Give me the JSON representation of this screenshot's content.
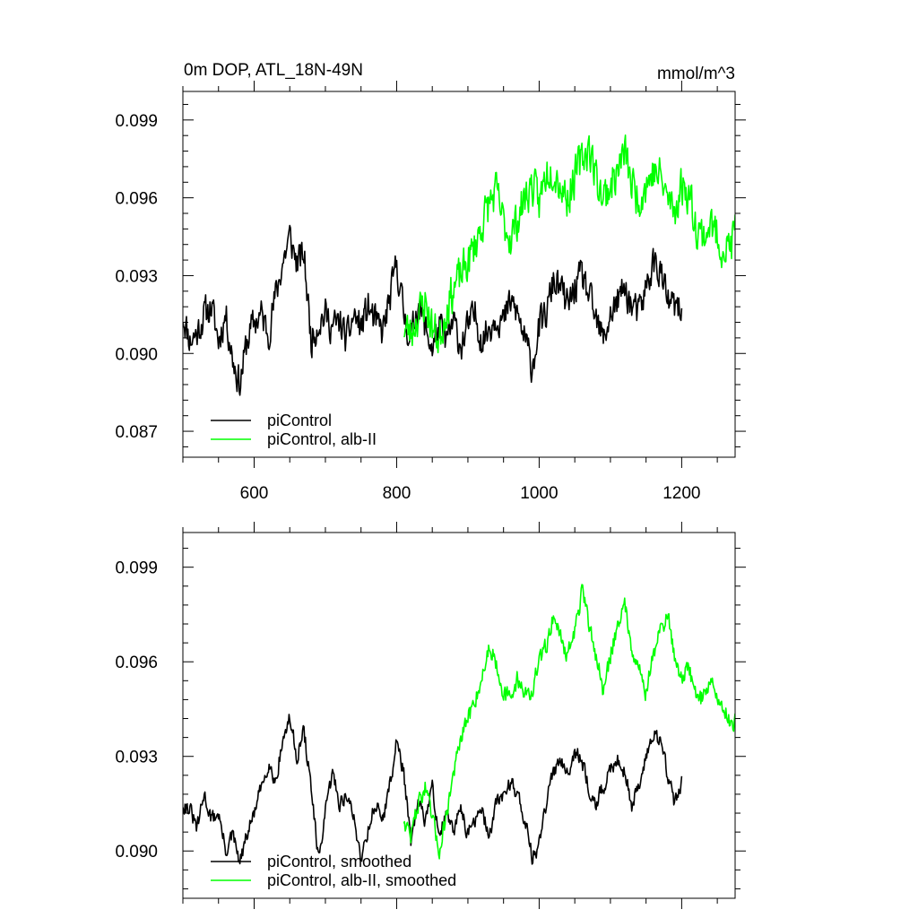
{
  "chart_data": [
    {
      "type": "line",
      "title": "0m DOP, ATL_18N-49N",
      "units": "mmol/m^3",
      "xlim": [
        500,
        1275
      ],
      "ylim": [
        0.086,
        0.1001
      ],
      "x_ticks": [
        600,
        800,
        1000,
        1200
      ],
      "x_tick_labels": [
        "600",
        "800",
        "1000",
        "1200"
      ],
      "y_ticks": [
        0.087,
        0.09,
        0.093,
        0.096,
        0.099
      ],
      "y_tick_labels": [
        "0.087",
        "0.090",
        "0.093",
        "0.096",
        "0.099"
      ],
      "legend_position": "bottom-left",
      "series": [
        {
          "name": "piControl",
          "color": "#000000",
          "x_start": 500,
          "x_end": 1200,
          "anchors": [
            [
              500,
              0.0915
            ],
            [
              510,
              0.0905
            ],
            [
              520,
              0.0908
            ],
            [
              530,
              0.0915
            ],
            [
              540,
              0.0918
            ],
            [
              550,
              0.0905
            ],
            [
              560,
              0.0915
            ],
            [
              570,
              0.0898
            ],
            [
              580,
              0.0888
            ],
            [
              590,
              0.0905
            ],
            [
              600,
              0.0912
            ],
            [
              610,
              0.0915
            ],
            [
              620,
              0.0908
            ],
            [
              630,
              0.0922
            ],
            [
              640,
              0.0935
            ],
            [
              650,
              0.0945
            ],
            [
              660,
              0.0935
            ],
            [
              670,
              0.0938
            ],
            [
              680,
              0.0905
            ],
            [
              690,
              0.0912
            ],
            [
              700,
              0.0915
            ],
            [
              710,
              0.091
            ],
            [
              720,
              0.0912
            ],
            [
              730,
              0.0905
            ],
            [
              740,
              0.0915
            ],
            [
              750,
              0.091
            ],
            [
              760,
              0.0918
            ],
            [
              770,
              0.0912
            ],
            [
              780,
              0.0908
            ],
            [
              790,
              0.092
            ],
            [
              800,
              0.0935
            ],
            [
              810,
              0.0915
            ],
            [
              820,
              0.0905
            ],
            [
              830,
              0.092
            ],
            [
              840,
              0.091
            ],
            [
              850,
              0.0902
            ],
            [
              860,
              0.091
            ],
            [
              870,
              0.0905
            ],
            [
              880,
              0.0912
            ],
            [
              890,
              0.0903
            ],
            [
              900,
              0.091
            ],
            [
              910,
              0.0915
            ],
            [
              920,
              0.0905
            ],
            [
              930,
              0.091
            ],
            [
              940,
              0.0915
            ],
            [
              950,
              0.0912
            ],
            [
              960,
              0.092
            ],
            [
              970,
              0.0915
            ],
            [
              980,
              0.0905
            ],
            [
              990,
              0.0895
            ],
            [
              1000,
              0.091
            ],
            [
              1010,
              0.0915
            ],
            [
              1020,
              0.0928
            ],
            [
              1030,
              0.0925
            ],
            [
              1040,
              0.0918
            ],
            [
              1050,
              0.0925
            ],
            [
              1060,
              0.093
            ],
            [
              1070,
              0.0922
            ],
            [
              1080,
              0.0912
            ],
            [
              1090,
              0.0905
            ],
            [
              1100,
              0.0915
            ],
            [
              1110,
              0.092
            ],
            [
              1120,
              0.0925
            ],
            [
              1130,
              0.0918
            ],
            [
              1140,
              0.0915
            ],
            [
              1150,
              0.0925
            ],
            [
              1160,
              0.0935
            ],
            [
              1170,
              0.0932
            ],
            [
              1180,
              0.092
            ],
            [
              1190,
              0.0918
            ],
            [
              1200,
              0.0915
            ]
          ],
          "amplitude": 0.0009,
          "seed": 11
        },
        {
          "name": "piControl, alb-II",
          "color": "#00ff00",
          "x_start": 810,
          "x_end": 1275,
          "anchors": [
            [
              810,
              0.091
            ],
            [
              820,
              0.0908
            ],
            [
              830,
              0.0915
            ],
            [
              840,
              0.092
            ],
            [
              850,
              0.091
            ],
            [
              860,
              0.0905
            ],
            [
              870,
              0.0918
            ],
            [
              880,
              0.0925
            ],
            [
              890,
              0.093
            ],
            [
              900,
              0.0935
            ],
            [
              910,
              0.0942
            ],
            [
              920,
              0.095
            ],
            [
              930,
              0.0958
            ],
            [
              940,
              0.0962
            ],
            [
              950,
              0.095
            ],
            [
              960,
              0.0945
            ],
            [
              970,
              0.0952
            ],
            [
              980,
              0.096
            ],
            [
              990,
              0.0965
            ],
            [
              1000,
              0.0958
            ],
            [
              1010,
              0.097
            ],
            [
              1020,
              0.0972
            ],
            [
              1030,
              0.0965
            ],
            [
              1040,
              0.096
            ],
            [
              1050,
              0.0968
            ],
            [
              1060,
              0.0975
            ],
            [
              1070,
              0.098
            ],
            [
              1080,
              0.0968
            ],
            [
              1090,
              0.096
            ],
            [
              1100,
              0.0965
            ],
            [
              1110,
              0.097
            ],
            [
              1120,
              0.0978
            ],
            [
              1130,
              0.0965
            ],
            [
              1140,
              0.096
            ],
            [
              1150,
              0.0965
            ],
            [
              1160,
              0.097
            ],
            [
              1170,
              0.0968
            ],
            [
              1180,
              0.096
            ],
            [
              1190,
              0.0955
            ],
            [
              1200,
              0.0965
            ],
            [
              1210,
              0.0962
            ],
            [
              1220,
              0.095
            ],
            [
              1230,
              0.0945
            ],
            [
              1240,
              0.095
            ],
            [
              1250,
              0.0945
            ],
            [
              1260,
              0.094
            ],
            [
              1270,
              0.0942
            ],
            [
              1275,
              0.0948
            ]
          ],
          "amplitude": 0.0011,
          "seed": 23
        }
      ]
    },
    {
      "type": "line",
      "title": "",
      "xlim": [
        500,
        1275
      ],
      "ylim": [
        0.0885,
        0.1001
      ],
      "x_ticks": [
        600,
        800,
        1000,
        1200
      ],
      "x_tick_labels": [],
      "y_ticks": [
        0.09,
        0.093,
        0.096,
        0.099
      ],
      "y_tick_labels": [
        "0.090",
        "0.093",
        "0.096",
        "0.099"
      ],
      "legend_position": "bottom-left",
      "series": [
        {
          "name": "piControl, smoothed",
          "color": "#000000",
          "x_start": 500,
          "x_end": 1200,
          "anchors": [
            [
              500,
              0.0915
            ],
            [
              510,
              0.0913
            ],
            [
              520,
              0.0907
            ],
            [
              530,
              0.0918
            ],
            [
              540,
              0.091
            ],
            [
              550,
              0.0912
            ],
            [
              560,
              0.09
            ],
            [
              570,
              0.0905
            ],
            [
              580,
              0.0896
            ],
            [
              590,
              0.0905
            ],
            [
              600,
              0.0912
            ],
            [
              610,
              0.092
            ],
            [
              620,
              0.0928
            ],
            [
              630,
              0.0922
            ],
            [
              640,
              0.0935
            ],
            [
              650,
              0.0942
            ],
            [
              660,
              0.093
            ],
            [
              670,
              0.0938
            ],
            [
              680,
              0.092
            ],
            [
              690,
              0.0897
            ],
            [
              700,
              0.0912
            ],
            [
              710,
              0.0925
            ],
            [
              720,
              0.0915
            ],
            [
              730,
              0.0918
            ],
            [
              740,
              0.091
            ],
            [
              750,
              0.0898
            ],
            [
              760,
              0.0907
            ],
            [
              770,
              0.0915
            ],
            [
              780,
              0.091
            ],
            [
              790,
              0.092
            ],
            [
              800,
              0.0935
            ],
            [
              810,
              0.0925
            ],
            [
              820,
              0.0902
            ],
            [
              830,
              0.0915
            ],
            [
              840,
              0.091
            ],
            [
              850,
              0.092
            ],
            [
              860,
              0.0905
            ],
            [
              870,
              0.0912
            ],
            [
              880,
              0.0905
            ],
            [
              890,
              0.0915
            ],
            [
              900,
              0.0905
            ],
            [
              910,
              0.091
            ],
            [
              920,
              0.0912
            ],
            [
              930,
              0.0905
            ],
            [
              940,
              0.0915
            ],
            [
              950,
              0.0918
            ],
            [
              960,
              0.0922
            ],
            [
              970,
              0.0918
            ],
            [
              980,
              0.091
            ],
            [
              990,
              0.0898
            ],
            [
              1000,
              0.0902
            ],
            [
              1010,
              0.0915
            ],
            [
              1020,
              0.0925
            ],
            [
              1030,
              0.093
            ],
            [
              1040,
              0.0925
            ],
            [
              1050,
              0.0932
            ],
            [
              1060,
              0.0928
            ],
            [
              1070,
              0.092
            ],
            [
              1080,
              0.0915
            ],
            [
              1090,
              0.092
            ],
            [
              1100,
              0.0925
            ],
            [
              1110,
              0.093
            ],
            [
              1120,
              0.0925
            ],
            [
              1130,
              0.0915
            ],
            [
              1140,
              0.092
            ],
            [
              1150,
              0.093
            ],
            [
              1160,
              0.0938
            ],
            [
              1170,
              0.0935
            ],
            [
              1180,
              0.0925
            ],
            [
              1190,
              0.0915
            ],
            [
              1200,
              0.0922
            ]
          ],
          "amplitude": 0.00035,
          "seed": 31
        },
        {
          "name": "piControl, alb-II, smoothed",
          "color": "#00ff00",
          "x_start": 810,
          "x_end": 1275,
          "anchors": [
            [
              810,
              0.091
            ],
            [
              820,
              0.0905
            ],
            [
              830,
              0.0915
            ],
            [
              840,
              0.092
            ],
            [
              850,
              0.091
            ],
            [
              860,
              0.09
            ],
            [
              870,
              0.0912
            ],
            [
              880,
              0.0925
            ],
            [
              890,
              0.0935
            ],
            [
              900,
              0.0942
            ],
            [
              910,
              0.0948
            ],
            [
              920,
              0.0955
            ],
            [
              930,
              0.0965
            ],
            [
              940,
              0.096
            ],
            [
              950,
              0.095
            ],
            [
              960,
              0.0948
            ],
            [
              970,
              0.0955
            ],
            [
              980,
              0.095
            ],
            [
              990,
              0.095
            ],
            [
              1000,
              0.096
            ],
            [
              1010,
              0.0965
            ],
            [
              1020,
              0.0975
            ],
            [
              1030,
              0.0968
            ],
            [
              1040,
              0.0962
            ],
            [
              1050,
              0.097
            ],
            [
              1060,
              0.0982
            ],
            [
              1070,
              0.0972
            ],
            [
              1080,
              0.0962
            ],
            [
              1090,
              0.095
            ],
            [
              1100,
              0.0962
            ],
            [
              1110,
              0.0972
            ],
            [
              1120,
              0.0978
            ],
            [
              1130,
              0.0965
            ],
            [
              1140,
              0.0958
            ],
            [
              1150,
              0.095
            ],
            [
              1160,
              0.0962
            ],
            [
              1170,
              0.097
            ],
            [
              1180,
              0.0975
            ],
            [
              1190,
              0.0962
            ],
            [
              1200,
              0.0955
            ],
            [
              1210,
              0.0958
            ],
            [
              1220,
              0.095
            ],
            [
              1230,
              0.0948
            ],
            [
              1240,
              0.0955
            ],
            [
              1250,
              0.0948
            ],
            [
              1260,
              0.0945
            ],
            [
              1270,
              0.094
            ],
            [
              1275,
              0.0942
            ]
          ],
          "amplitude": 0.0004,
          "seed": 47
        }
      ]
    }
  ]
}
